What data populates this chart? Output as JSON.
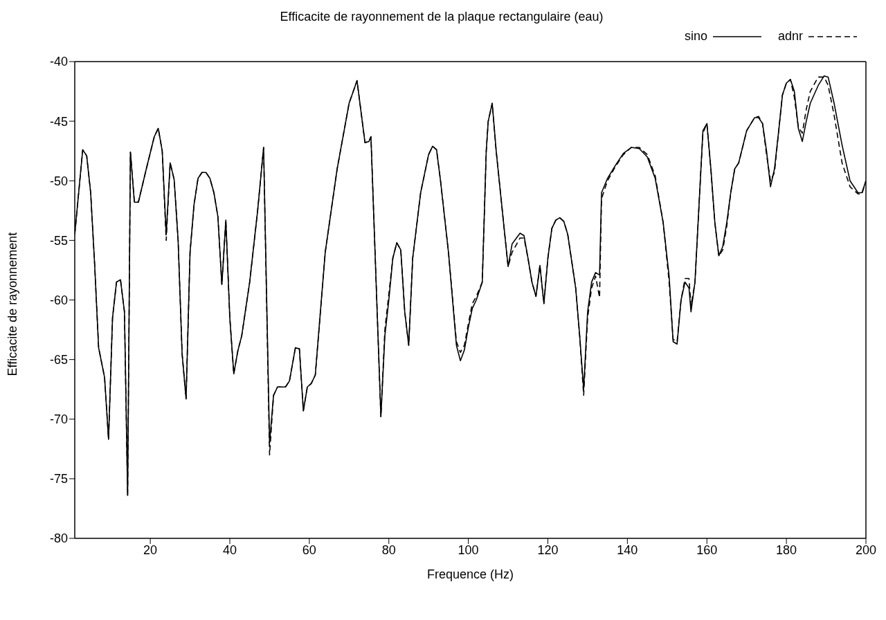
{
  "chart_data": {
    "type": "line",
    "title": "Efficacite de rayonnement de la plaque rectangulaire (eau)",
    "xlabel": "Frequence (Hz)",
    "ylabel": "Efficacite de rayonnement",
    "x": [
      1,
      3,
      4,
      5,
      6,
      7,
      8.5,
      9.5,
      10.5,
      11.5,
      12.5,
      13.5,
      14.3,
      15,
      16,
      17,
      19,
      21,
      22,
      23,
      24,
      25,
      26,
      27,
      28,
      29,
      30,
      31,
      32,
      33,
      34,
      35,
      36,
      37,
      38,
      39,
      40,
      41,
      42,
      43,
      45,
      47,
      48.5,
      50,
      51,
      52,
      54,
      55,
      56.5,
      57.5,
      58.5,
      59.5,
      60.5,
      61.5,
      64,
      67,
      70,
      72,
      74,
      75,
      75.5,
      78,
      79,
      80,
      81,
      82,
      83,
      84,
      85,
      86,
      88,
      90,
      91,
      92,
      93,
      95,
      97,
      98,
      99,
      100,
      101,
      102,
      103.5,
      104.5,
      105,
      106,
      107,
      109,
      110,
      111,
      113,
      114,
      115,
      116,
      117,
      118,
      119,
      120,
      121,
      122,
      123,
      124,
      125,
      127,
      128,
      129,
      130,
      131,
      132,
      133,
      133.5,
      135,
      137,
      139,
      141,
      143,
      145,
      147,
      149,
      150.5,
      151.5,
      152.5,
      153.5,
      154.5,
      155.5,
      156,
      157,
      158.5,
      159,
      160,
      161,
      162,
      163,
      164,
      165,
      166,
      167,
      168,
      170,
      172,
      173,
      174,
      175,
      176,
      177,
      178,
      179,
      180,
      181,
      182,
      183,
      184,
      185,
      186,
      188,
      189.5,
      190.5,
      192,
      194,
      196,
      198,
      199,
      200
    ],
    "series": [
      {
        "name": "sino",
        "color": "#000000",
        "line_style": "solid",
        "values": [
          -54.5,
          -47.4,
          -47.9,
          -51,
          -57,
          -64,
          -66.5,
          -71.7,
          -61.5,
          -58.5,
          -58.3,
          -61,
          -76.4,
          -47.6,
          -51.8,
          -51.8,
          -49,
          -46.3,
          -45.6,
          -47.5,
          -54.5,
          -48.5,
          -49.9,
          -55,
          -64.5,
          -68.3,
          -56,
          -52,
          -49.8,
          -49.3,
          -49.3,
          -49.8,
          -51,
          -53,
          -58.7,
          -53.3,
          -61.5,
          -66.2,
          -64.3,
          -63,
          -58.5,
          -52.5,
          -47.2,
          -72,
          -68,
          -67.3,
          -67.3,
          -66.8,
          -64,
          -64.1,
          -69.3,
          -67.3,
          -67,
          -66.3,
          -56,
          -49,
          -43.5,
          -41.6,
          -46.8,
          -46.7,
          -46.3,
          -69.8,
          -63,
          -60,
          -56.5,
          -55.2,
          -55.8,
          -61,
          -63.8,
          -56.5,
          -51,
          -47.8,
          -47.1,
          -47.4,
          -50,
          -56,
          -63.8,
          -65.1,
          -64.2,
          -62.3,
          -60.7,
          -60,
          -58.5,
          -47.5,
          -45,
          -43.5,
          -47.5,
          -54,
          -57.2,
          -55.3,
          -54.4,
          -54.6,
          -56.5,
          -58.5,
          -59.7,
          -57.1,
          -60.3,
          -56.5,
          -54,
          -53.3,
          -53.1,
          -53.4,
          -54.5,
          -59,
          -63,
          -67.5,
          -61,
          -58.5,
          -57.7,
          -57.9,
          -51,
          -49.8,
          -48.7,
          -47.7,
          -47.2,
          -47.3,
          -48,
          -49.8,
          -53.5,
          -58,
          -63.5,
          -63.7,
          -60,
          -58.5,
          -59,
          -61,
          -58.5,
          -49,
          -45.8,
          -45.2,
          -49,
          -53.5,
          -56.3,
          -55.5,
          -53.5,
          -51,
          -49,
          -48.5,
          -45.8,
          -44.7,
          -44.7,
          -45.2,
          -47.5,
          -50.5,
          -49,
          -46,
          -42.8,
          -41.8,
          -41.5,
          -42.5,
          -45.6,
          -46.7,
          -45,
          -43.5,
          -42,
          -41.2,
          -41.3,
          -43.5,
          -47,
          -50,
          -51,
          -51,
          -50
        ]
      },
      {
        "name": "adnr",
        "color": "#000000",
        "line_style": "dashed",
        "values": [
          -54.5,
          -47.4,
          -47.9,
          -51,
          -57,
          -64,
          -66.5,
          -71.7,
          -61.5,
          -58.5,
          -58.3,
          -61,
          -76.4,
          -47.6,
          -51.8,
          -51.8,
          -49,
          -46.3,
          -45.6,
          -47.5,
          -55,
          -48.5,
          -49.9,
          -55,
          -64.5,
          -68.3,
          -56,
          -52,
          -49.8,
          -49.3,
          -49.3,
          -49.8,
          -51,
          -53,
          -58.7,
          -53.3,
          -61.5,
          -66.2,
          -64.3,
          -63,
          -58.5,
          -52.5,
          -47.2,
          -73,
          -68,
          -67.3,
          -67.3,
          -66.8,
          -64,
          -64.1,
          -69.3,
          -67.3,
          -67,
          -66.3,
          -56,
          -49,
          -43.5,
          -41.6,
          -46.8,
          -46.7,
          -46.3,
          -69.8,
          -62.5,
          -59.5,
          -56.5,
          -55.2,
          -55.8,
          -61,
          -63.8,
          -56.5,
          -51,
          -47.8,
          -47.1,
          -47.4,
          -50,
          -56,
          -63.5,
          -64.4,
          -63.8,
          -62,
          -60.3,
          -59.7,
          -58.5,
          -47.5,
          -45,
          -43.5,
          -47.5,
          -54,
          -57.2,
          -56,
          -54.8,
          -54.8,
          -56.5,
          -58.5,
          -59.7,
          -57.1,
          -60.3,
          -56.5,
          -54,
          -53.3,
          -53.1,
          -53.4,
          -54.5,
          -59,
          -63,
          -68,
          -61.5,
          -59,
          -58,
          -59.8,
          -51.5,
          -50,
          -48.8,
          -47.8,
          -47.2,
          -47.2,
          -47.8,
          -49.6,
          -53.5,
          -58.5,
          -63.3,
          -63.5,
          -60,
          -58.2,
          -58.2,
          -60.5,
          -58.5,
          -49,
          -46,
          -45.2,
          -49,
          -53.5,
          -56.3,
          -55.8,
          -53.8,
          -51,
          -49,
          -48.5,
          -45.8,
          -44.7,
          -44.6,
          -45.2,
          -47.8,
          -50,
          -49.3,
          -46,
          -42.8,
          -41.8,
          -41.5,
          -43,
          -45.5,
          -46,
          -44,
          -42.5,
          -41.3,
          -41.3,
          -42,
          -44.5,
          -48.5,
          -50.5,
          -51.1,
          -51.1,
          -50
        ]
      }
    ],
    "xlim": [
      1,
      200
    ],
    "ylim": [
      -80,
      -40
    ],
    "xticks": [
      20,
      40,
      60,
      80,
      100,
      120,
      140,
      160,
      180,
      200
    ],
    "yticks": [
      -80,
      -75,
      -70,
      -65,
      -60,
      -55,
      -50,
      -45,
      -40
    ],
    "grid": false,
    "legend": "top right",
    "marker": "none"
  }
}
